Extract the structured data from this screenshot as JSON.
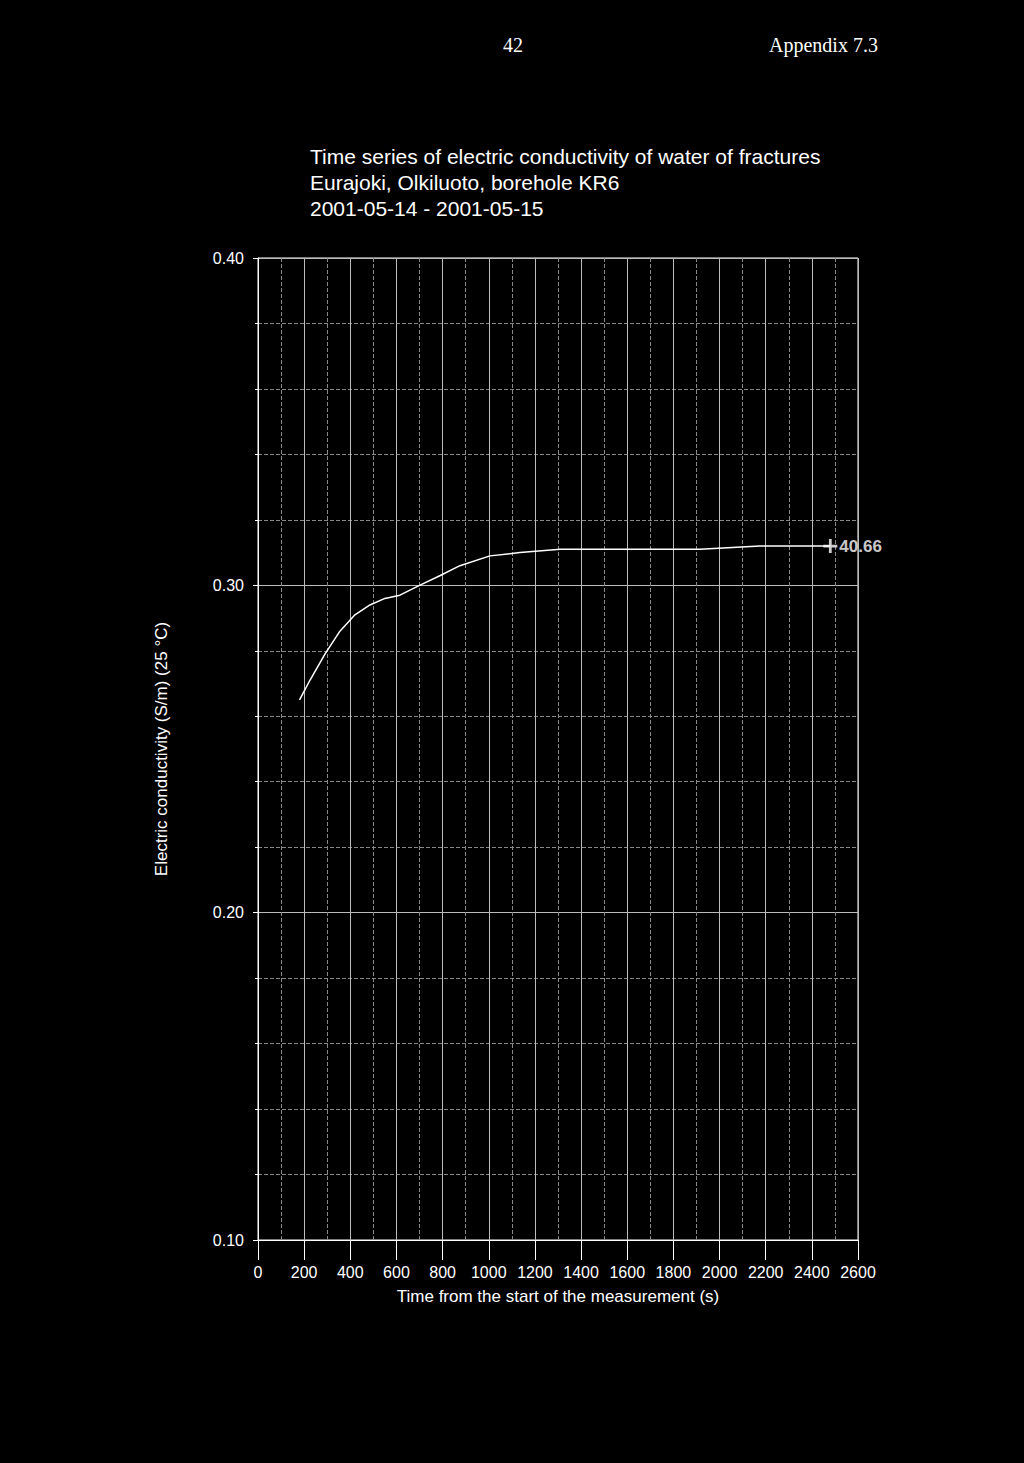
{
  "chart_data": {
    "type": "line",
    "header": {
      "page": "42",
      "appendix": "Appendix 7.3"
    },
    "title": "Time series of electric conductivity of water of fractures\nEurajoki, Olkiluoto, borehole KR6\n2001-05-14 - 2001-05-15",
    "x_label": "Time from the start of the measurement (s)",
    "y_label": "Electric conductivity (S/m) (25 °C)",
    "x": [
      180,
      225,
      290,
      355,
      420,
      485,
      550,
      615,
      700,
      790,
      875,
      1005,
      1135,
      1310,
      1570,
      1915,
      2175,
      2435,
      2480
    ],
    "values": [
      0.265,
      0.271,
      0.279,
      0.286,
      0.291,
      0.294,
      0.296,
      0.297,
      0.3,
      0.303,
      0.306,
      0.309,
      0.31,
      0.311,
      0.311,
      0.311,
      0.312,
      0.312,
      0.312
    ],
    "color": "#ffffff",
    "annotations": [
      {
        "x": 2480,
        "y": 0.312,
        "text": "40.66"
      }
    ],
    "xlim": [
      0,
      2600
    ],
    "xticks": [
      0,
      200,
      400,
      600,
      800,
      1000,
      1200,
      1400,
      1600,
      1800,
      2000,
      2200,
      2400,
      2600
    ],
    "ylim": [
      0.1,
      0.4
    ],
    "yticks": [
      {
        "value": 0.1,
        "label": "0.10"
      },
      {
        "value": 0.2,
        "label": "0.20"
      },
      {
        "value": 0.3,
        "label": "0.30"
      },
      {
        "value": 0.4,
        "label": "0.40"
      }
    ],
    "grid": true
  }
}
